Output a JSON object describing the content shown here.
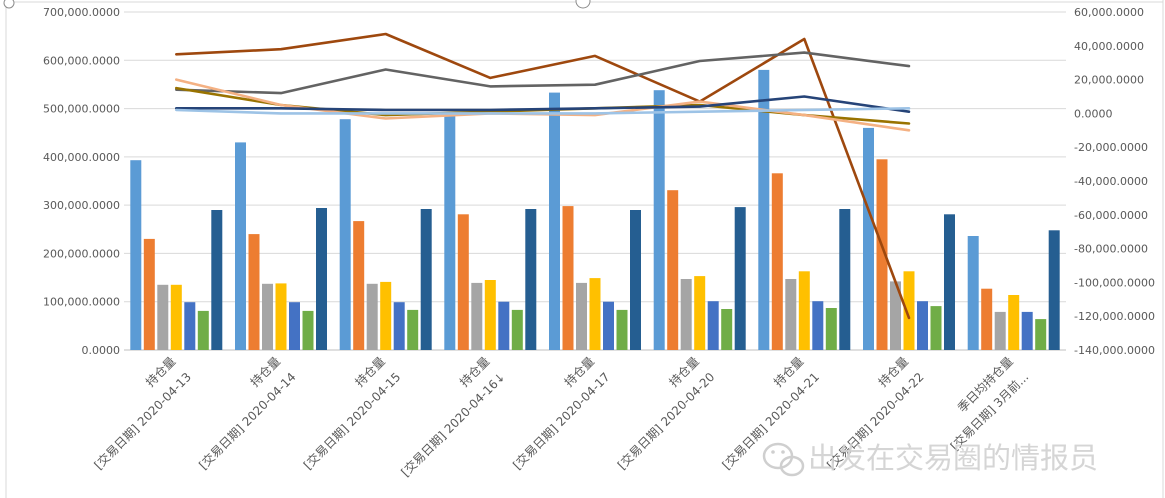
{
  "watermark": {
    "text": "出发在交易圈的情报员",
    "icon": "wechat-icon"
  },
  "chart_data": {
    "type": "bar",
    "categories": [
      [
        "持仓量",
        "[交易日期] 2020-04-13"
      ],
      [
        "持仓量",
        "[交易日期] 2020-04-14"
      ],
      [
        "持仓量",
        "[交易日期] 2020-04-15"
      ],
      [
        "持仓量",
        "[交易日期] 2020-04-16↓"
      ],
      [
        "持仓量",
        "[交易日期] 2020-04-17"
      ],
      [
        "持仓量",
        "[交易日期] 2020-04-20"
      ],
      [
        "持仓量",
        "[交易日期] 2020-04-21"
      ],
      [
        "持仓量",
        "[交易日期] 2020-04-22"
      ],
      [
        "季日均持仓量",
        "[交易日期] 3月前..."
      ]
    ],
    "y_left": {
      "min": 0,
      "max": 700000,
      "step": 100000,
      "tick_labels": [
        "0.0000",
        "100,000.0000",
        "200,000.0000",
        "300,000.0000",
        "400,000.0000",
        "500,000.0000",
        "600,000.0000",
        "700,000.0000"
      ]
    },
    "y_right": {
      "min": -140000,
      "max": 60000,
      "step": 20000,
      "tick_labels": [
        "-140,000.0000",
        "-120,000.0000",
        "-100,000.0000",
        "-80,000.0000",
        "-60,000.0000",
        "-40,000.0000",
        "-20,000.0000",
        "0.0000",
        "20,000.0000",
        "40,000.0000",
        "60,000.0000"
      ]
    },
    "grid": true,
    "legend": "none",
    "bar_series": [
      {
        "color": "#5B9BD5",
        "values": [
          393000,
          430000,
          478000,
          490000,
          533000,
          538000,
          580000,
          460000,
          236000
        ]
      },
      {
        "color": "#ED7D31",
        "values": [
          230000,
          240000,
          267000,
          281000,
          298000,
          331000,
          366000,
          395000,
          127000
        ]
      },
      {
        "color": "#A5A5A5",
        "values": [
          135000,
          137000,
          137000,
          139000,
          139000,
          147000,
          147000,
          142000,
          79000
        ]
      },
      {
        "color": "#FFC000",
        "values": [
          135000,
          138000,
          141000,
          145000,
          149000,
          153000,
          163000,
          163000,
          114000
        ]
      },
      {
        "color": "#4472C4",
        "values": [
          99000,
          99000,
          99000,
          100000,
          100000,
          101000,
          101000,
          101000,
          79000
        ]
      },
      {
        "color": "#70AD47",
        "values": [
          81000,
          81000,
          83000,
          83000,
          83000,
          85000,
          87000,
          91000,
          64000
        ]
      },
      {
        "color": "#255E91",
        "values": [
          290000,
          294000,
          292000,
          292000,
          290000,
          296000,
          292000,
          281000,
          248000
        ]
      }
    ],
    "line_series": [
      {
        "color": "#9E480E",
        "values": [
          35000,
          38000,
          47000,
          21000,
          34000,
          7000,
          44000,
          -121000
        ]
      },
      {
        "color": "#636363",
        "values": [
          14000,
          12000,
          26000,
          16000,
          17000,
          31000,
          36000,
          28000
        ]
      },
      {
        "color": "#997300",
        "values": [
          15000,
          5000,
          -1000,
          1000,
          3000,
          5000,
          -1000,
          -6000
        ]
      },
      {
        "color": "#F4B183",
        "values": [
          20000,
          5000,
          -3000,
          0,
          -1000,
          7000,
          -1000,
          -10000
        ]
      },
      {
        "color": "#264478",
        "values": [
          3000,
          3000,
          2000,
          2000,
          3000,
          4000,
          10000,
          1000
        ]
      },
      {
        "color": "#9DC3E6",
        "values": [
          2000,
          0,
          0,
          0,
          0,
          1000,
          2000,
          3000
        ]
      }
    ]
  }
}
